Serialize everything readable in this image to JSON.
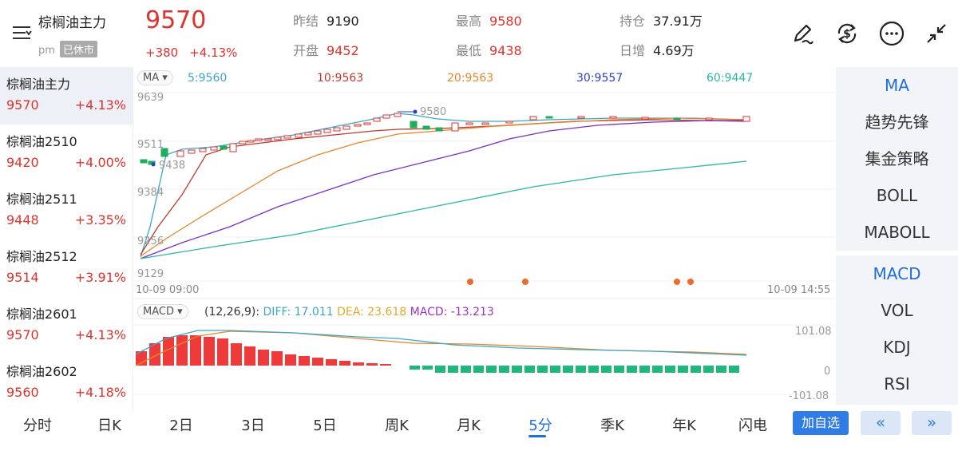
{
  "header": {
    "symbol_name": "棕榈油主力",
    "session": "pm",
    "status_badge": "已休市",
    "price": "9570",
    "change_abs": "+380",
    "change_pct": "+4.13%",
    "stats": {
      "prev_close_label": "昨结",
      "prev_close": "9190",
      "open_label": "开盘",
      "open": "9452",
      "high_label": "最高",
      "high": "9580",
      "low_label": "最低",
      "low": "9438",
      "oi_label": "持仓",
      "oi": "37.91万",
      "oi_inc_label": "日增",
      "oi_inc": "4.69万"
    },
    "icons": [
      "menu-icon",
      "pen-icon",
      "dollar-cycle-icon",
      "more-icon",
      "collapse-icon"
    ]
  },
  "sidebar": {
    "items": [
      {
        "name": "棕榈油主力",
        "price": "9570",
        "pct": "+4.13%"
      },
      {
        "name": "棕榈油2510",
        "price": "9420",
        "pct": "+4.00%"
      },
      {
        "name": "棕榈油2511",
        "price": "9448",
        "pct": "+3.35%"
      },
      {
        "name": "棕榈油2512",
        "price": "9514",
        "pct": "+3.91%"
      },
      {
        "name": "棕榈油2601",
        "price": "9570",
        "pct": "+4.13%"
      },
      {
        "name": "棕榈油2602",
        "price": "9560",
        "pct": "+4.18%"
      }
    ]
  },
  "chart": {
    "ma_selector": "MA ▾",
    "ma5": "5:9560",
    "ma10": "10:9563",
    "ma20": "20:9563",
    "ma30": "30:9557",
    "ma60": "60:9447",
    "y_labels": [
      "9639",
      "9511",
      "9384",
      "9256",
      "9129"
    ],
    "high_mark": "9580",
    "low_mark": "9438",
    "time_start": "10-09 09:00",
    "time_end": "10-09 14:55",
    "macd_selector": "MACD ▾",
    "macd_params": "(12,26,9):",
    "diff": "DIFF: 17.011",
    "dea": "DEA: 23.618",
    "macd": "MACD: -13.213",
    "macd_top": "101.08",
    "macd_zero": "0",
    "macd_bottom": "-101.08",
    "colors": {
      "up": "#e0312b",
      "down": "#1fae5b",
      "ma5": "#3aa6c8",
      "ma10": "#c0392b",
      "ma20": "#e6862b",
      "ma30": "#7a2fc8",
      "ma60": "#2bb5a6"
    }
  },
  "right_panel": {
    "indicators_main": [
      "MA",
      "趋势先锋",
      "集金策略",
      "BOLL",
      "MABOLL"
    ],
    "indicators_sub": [
      "MACD",
      "VOL",
      "KDJ",
      "RSI"
    ]
  },
  "bottom_tabs": [
    "分时",
    "日K",
    "2日",
    "3日",
    "5日",
    "周K",
    "月K",
    "5分",
    "季K",
    "年K",
    "闪电"
  ],
  "bottom_active": "5分",
  "add_watch": "加自选",
  "prev_btn": "«",
  "next_btn": "»"
}
